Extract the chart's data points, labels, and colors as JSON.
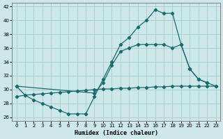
{
  "xlabel": "Humidex (Indice chaleur)",
  "bg_color": "#cce8e8",
  "line_color": "#1a6b6b",
  "grid_color": "#b0d0d0",
  "xlim": [
    -0.5,
    23.5
  ],
  "ylim": [
    25.5,
    42.5
  ],
  "yticks": [
    26,
    28,
    30,
    32,
    34,
    36,
    38,
    40,
    42
  ],
  "xticks": [
    0,
    1,
    2,
    3,
    4,
    5,
    6,
    7,
    8,
    9,
    10,
    11,
    12,
    13,
    14,
    15,
    16,
    17,
    18,
    19,
    20,
    21,
    22,
    23
  ],
  "line1_x": [
    0,
    1,
    2,
    3,
    4,
    5,
    6,
    7,
    8,
    9,
    10,
    11,
    12,
    13,
    14,
    15,
    16,
    17,
    18,
    19,
    20,
    21,
    22
  ],
  "line1_y": [
    30.5,
    29.2,
    28.5,
    28.0,
    27.5,
    27.0,
    26.5,
    26.5,
    26.5,
    29.0,
    31.5,
    34.0,
    36.5,
    37.5,
    39.0,
    40.0,
    41.5,
    41.0,
    41.0,
    36.5,
    33.0,
    31.5,
    31.0
  ],
  "line2_x": [
    0,
    1,
    2,
    3,
    4,
    5,
    6,
    7,
    8,
    9,
    10,
    11,
    12,
    13,
    14,
    15,
    16,
    17,
    18,
    19,
    20,
    21,
    22,
    23
  ],
  "line2_y": [
    29.0,
    29.2,
    29.3,
    29.4,
    29.5,
    29.6,
    29.7,
    29.8,
    29.9,
    30.0,
    30.1,
    30.1,
    30.2,
    30.2,
    30.3,
    30.3,
    30.4,
    30.4,
    30.5,
    30.5,
    30.5,
    30.5,
    30.5,
    30.5
  ],
  "line3_x": [
    0,
    9,
    10,
    11,
    12,
    13,
    14,
    15,
    16,
    17,
    18,
    19,
    20,
    21,
    22,
    23
  ],
  "line3_y": [
    30.5,
    29.5,
    31.0,
    33.5,
    35.5,
    36.0,
    36.5,
    36.5,
    36.5,
    36.5,
    36.0,
    36.5,
    33.0,
    31.5,
    31.0,
    30.5
  ]
}
